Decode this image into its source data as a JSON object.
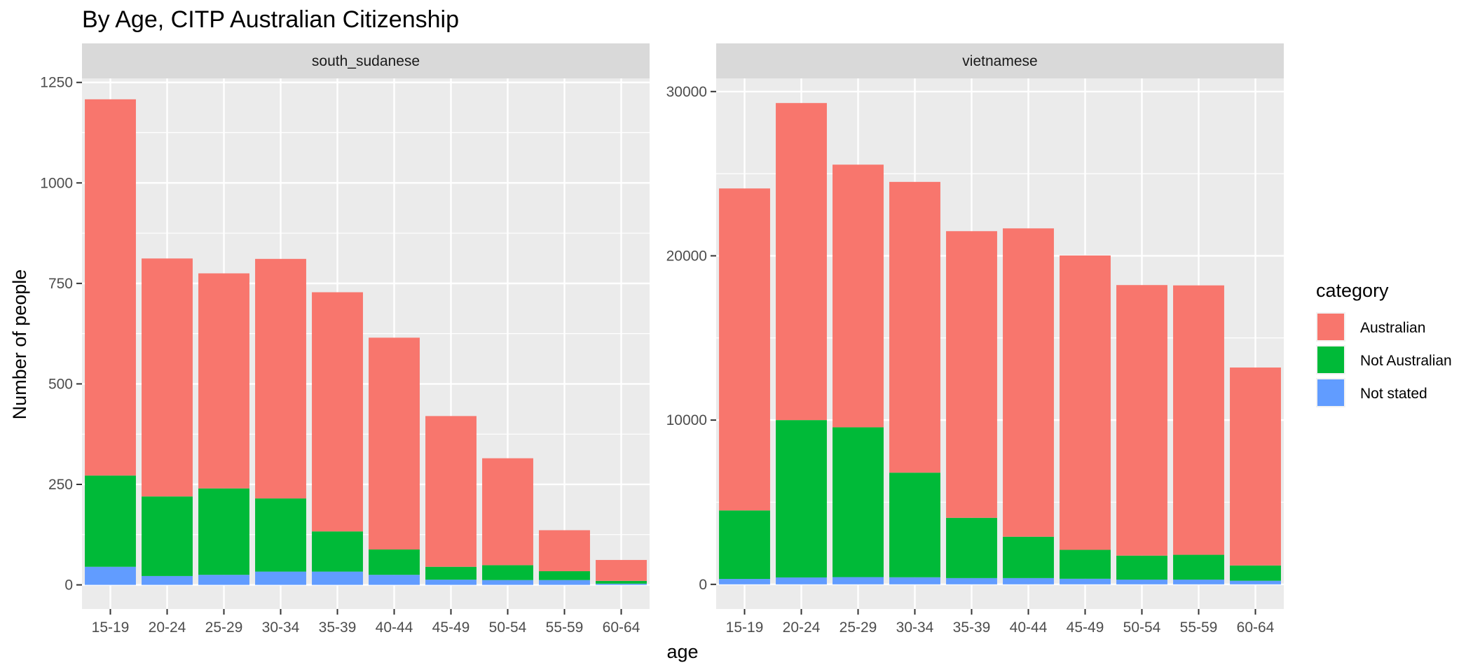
{
  "chart_data": {
    "type": "bar",
    "stacked": true,
    "title": "By Age,  CITP Australian Citizenship",
    "xlabel": "age",
    "ylabel": "Number of people",
    "categories": [
      "15-19",
      "20-24",
      "25-29",
      "30-34",
      "35-39",
      "40-44",
      "45-49",
      "50-54",
      "55-59",
      "60-64"
    ],
    "legend": {
      "title": "category",
      "placement": "right",
      "entries": [
        {
          "name": "Australian",
          "color": "#F8766D"
        },
        {
          "name": "Not Australian",
          "color": "#00BA38"
        },
        {
          "name": "Not stated",
          "color": "#619CFF"
        }
      ]
    },
    "facets": [
      {
        "label": "south_sudanese",
        "ylim": [
          -60,
          1260
        ],
        "yticks": [
          0,
          250,
          500,
          750,
          1000,
          1250
        ],
        "series": [
          {
            "name": "Not stated",
            "values": [
              45,
              22,
              25,
              33,
              33,
              25,
              13,
              12,
              12,
              3
            ]
          },
          {
            "name": "Not Australian",
            "values": [
              227,
              198,
              215,
              182,
              100,
              63,
              32,
              37,
              22,
              7
            ]
          },
          {
            "name": "Australian",
            "values": [
              936,
              592,
              535,
              596,
              595,
              527,
              375,
              266,
              102,
              52
            ]
          }
        ]
      },
      {
        "label": "vietnamese",
        "ylim": [
          -1500,
          30800
        ],
        "yticks": [
          0,
          10000,
          20000,
          30000
        ],
        "series": [
          {
            "name": "Not stated",
            "values": [
              330,
              420,
              440,
              430,
              380,
              380,
              340,
              290,
              290,
              220
            ]
          },
          {
            "name": "Not Australian",
            "values": [
              4170,
              9580,
              9120,
              6370,
              3670,
              2520,
              1760,
              1460,
              1510,
              930
            ]
          },
          {
            "name": "Australian",
            "values": [
              19600,
              19300,
              15990,
              17700,
              17450,
              18770,
              17920,
              16470,
              16400,
              12050
            ]
          }
        ]
      }
    ]
  }
}
